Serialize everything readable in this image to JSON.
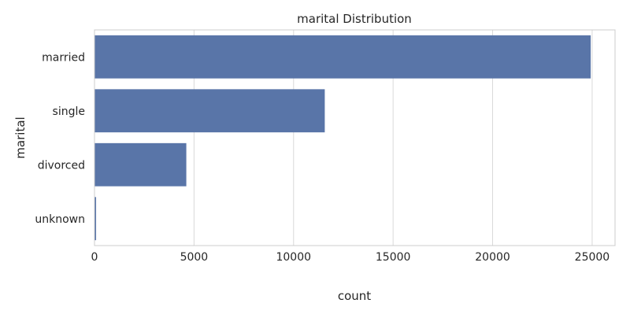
{
  "chart_data": {
    "type": "bar",
    "orientation": "horizontal",
    "title": "marital Distribution",
    "xlabel": "count",
    "ylabel": "marital",
    "categories": [
      "married",
      "single",
      "divorced",
      "unknown"
    ],
    "values": [
      24928,
      11568,
      4612,
      80
    ],
    "xlim": [
      0,
      26150
    ],
    "xticks": [
      0,
      5000,
      10000,
      15000,
      20000,
      25000
    ],
    "grid": true,
    "bar_color": "#5975a8",
    "grid_color": "#d9d9d9",
    "frame_color": "#cccccc"
  }
}
